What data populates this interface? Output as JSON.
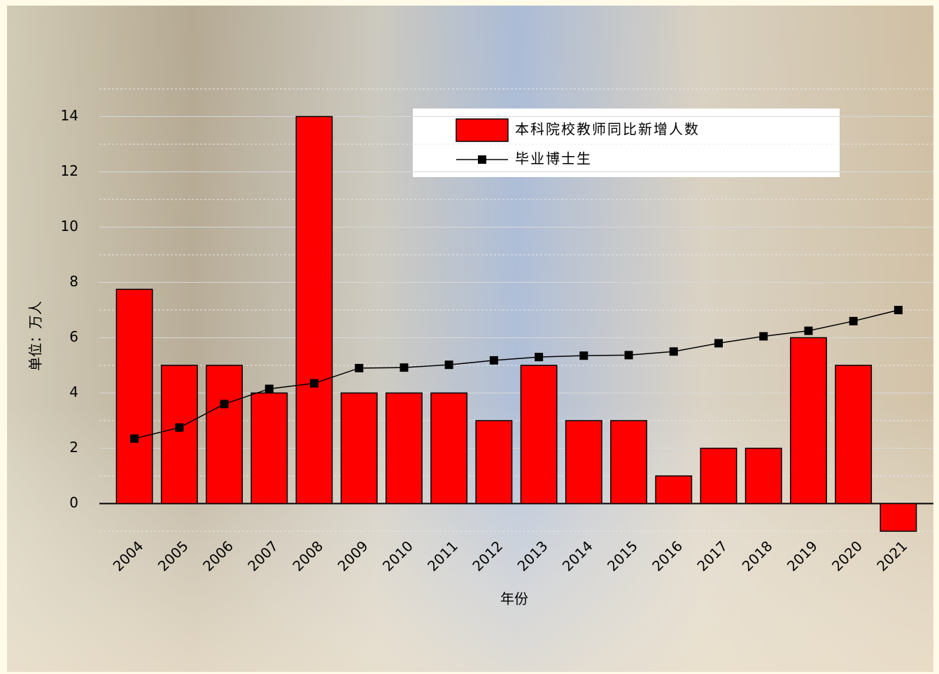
{
  "chart_data": {
    "type": "bar_line",
    "x_label": "年份",
    "y_label": "单位：万人",
    "categories": [
      "2004",
      "2005",
      "2006",
      "2007",
      "2008",
      "2009",
      "2010",
      "2011",
      "2012",
      "2013",
      "2014",
      "2015",
      "2016",
      "2017",
      "2018",
      "2019",
      "2020",
      "2021"
    ],
    "series": [
      {
        "name": "本科院校教师同比新增人数",
        "type": "bar",
        "color": "#ff0000",
        "values": [
          7.75,
          5,
          5,
          4,
          14,
          4,
          4,
          4,
          3,
          5,
          3,
          3,
          1,
          2,
          2,
          6,
          5,
          -1
        ]
      },
      {
        "name": "毕业博士生",
        "type": "line",
        "color": "#000000",
        "values": [
          2.35,
          2.75,
          3.6,
          4.15,
          4.35,
          4.9,
          4.92,
          5.02,
          5.18,
          5.3,
          5.35,
          5.37,
          5.5,
          5.8,
          6.05,
          6.25,
          6.6,
          7.0
        ]
      }
    ],
    "ylim": [
      -1,
      15
    ],
    "yticks": [
      0,
      2,
      4,
      6,
      8,
      10,
      12,
      14
    ],
    "grid": true
  }
}
